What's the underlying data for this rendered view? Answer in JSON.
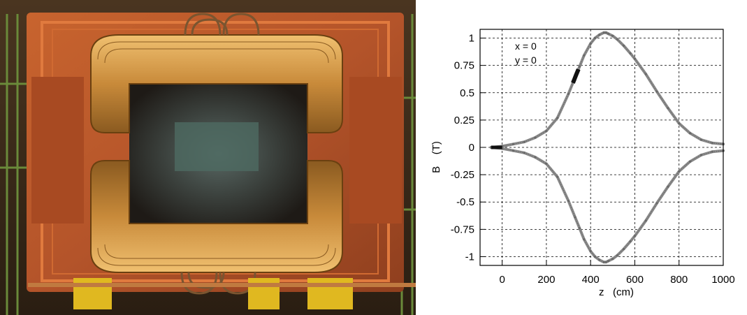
{
  "photo": {
    "subject": "large orange dipole magnet with copper-gold coils in an experimental hall"
  },
  "chart_data": {
    "type": "line",
    "annotation_lines": [
      "x = 0",
      "y = 0"
    ],
    "xlabel": "z   (cm)",
    "ylabel": "B    (T)",
    "xlim": [
      -100,
      1000
    ],
    "ylim": [
      -1.08,
      1.08
    ],
    "xticks": [
      0,
      200,
      400,
      600,
      800,
      1000
    ],
    "xtick_labels": [
      "0",
      "200",
      "400",
      "600",
      "800",
      "1000"
    ],
    "yticks": [
      -1,
      -0.75,
      -0.5,
      -0.25,
      0,
      0.25,
      0.5,
      0.75,
      1
    ],
    "ytick_labels": [
      "-1",
      "-0.75",
      "-0.5",
      "-0.25",
      "0",
      "0.25",
      "0.5",
      "0.75",
      "1"
    ],
    "grid": true,
    "series": [
      {
        "x": [
          -50,
          0,
          50,
          100,
          150,
          200,
          250,
          300,
          330,
          350,
          370,
          400,
          420,
          440,
          460,
          470,
          480,
          500,
          520,
          550,
          580,
          600,
          650,
          700,
          750,
          800,
          850,
          900,
          950,
          1000
        ],
        "y": [
          0,
          0.01,
          0.03,
          0.05,
          0.09,
          0.15,
          0.27,
          0.49,
          0.64,
          0.74,
          0.84,
          0.95,
          1.0,
          1.03,
          1.05,
          1.05,
          1.04,
          1.02,
          0.99,
          0.93,
          0.86,
          0.81,
          0.67,
          0.51,
          0.36,
          0.22,
          0.13,
          0.07,
          0.04,
          0.03
        ]
      },
      {
        "x": [
          -50,
          0,
          50,
          100,
          150,
          200,
          250,
          300,
          330,
          350,
          370,
          400,
          420,
          440,
          460,
          470,
          480,
          500,
          520,
          550,
          580,
          600,
          650,
          700,
          750,
          800,
          850,
          900,
          950,
          1000
        ],
        "y": [
          0,
          -0.01,
          -0.03,
          -0.05,
          -0.09,
          -0.15,
          -0.27,
          -0.49,
          -0.64,
          -0.74,
          -0.84,
          -0.95,
          -1.0,
          -1.03,
          -1.05,
          -1.05,
          -1.04,
          -1.02,
          -0.99,
          -0.93,
          -0.86,
          -0.81,
          -0.67,
          -0.51,
          -0.36,
          -0.22,
          -0.13,
          -0.07,
          -0.04,
          -0.03
        ]
      }
    ],
    "highlight": {
      "x": [
        320,
        345
      ],
      "series": 0
    }
  }
}
